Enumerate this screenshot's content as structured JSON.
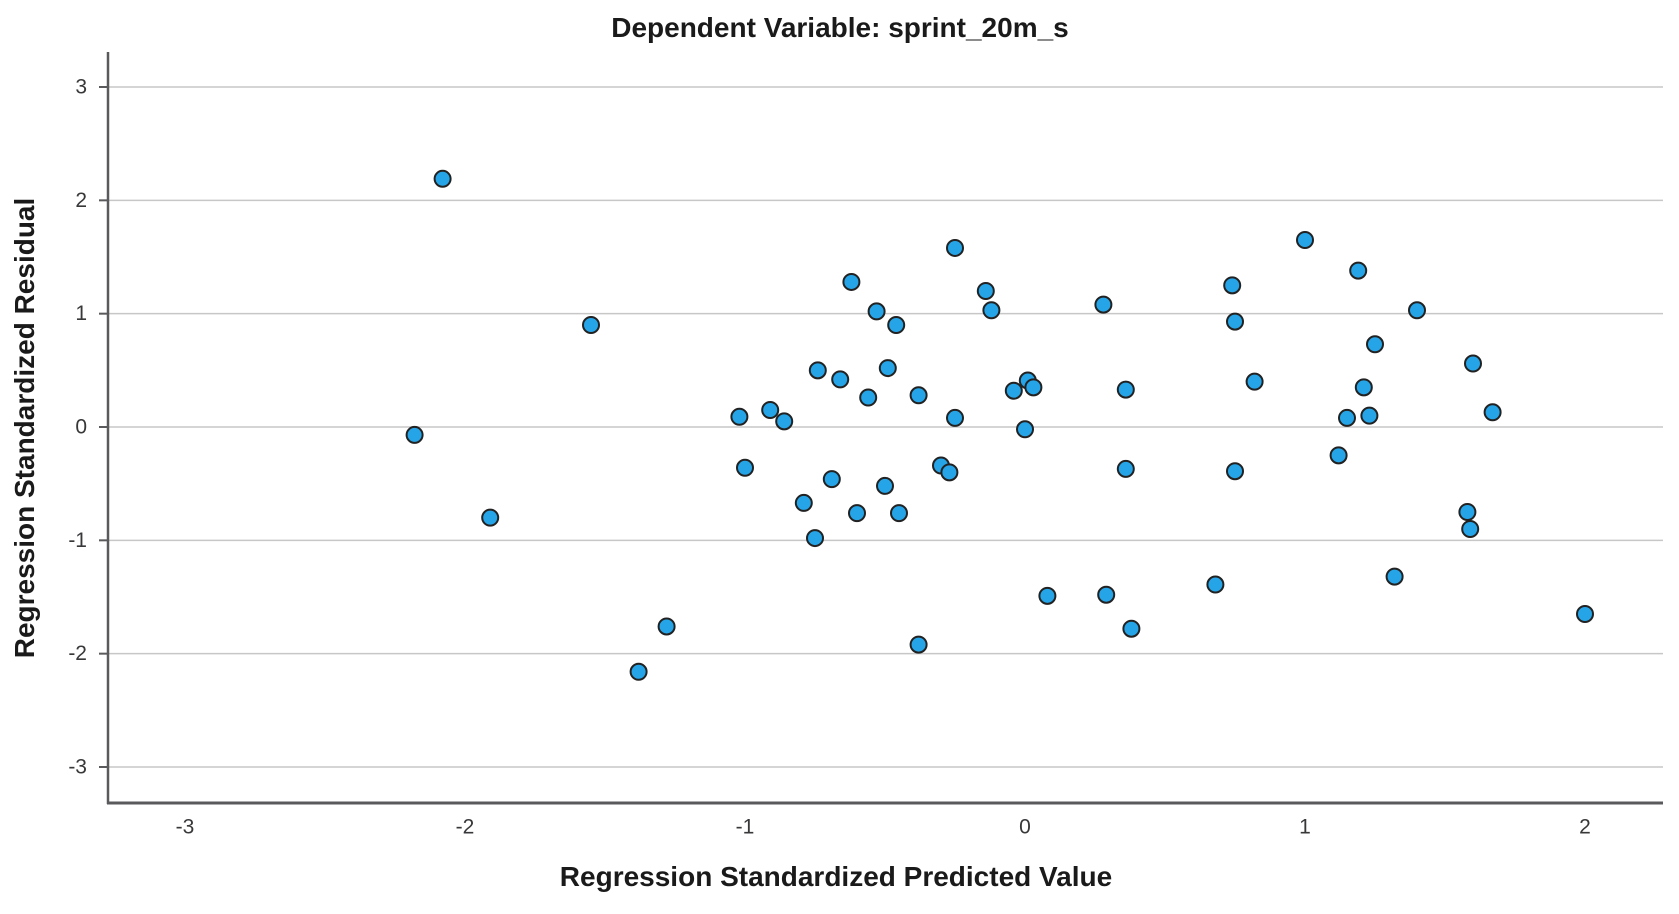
{
  "chart_data": {
    "type": "scatter",
    "title": "Dependent Variable: sprint_20m_s",
    "xlabel": "Regression Standardized Predicted Value",
    "ylabel": "Regression Standardized Residual",
    "xlim": [
      -3.3,
      2.28
    ],
    "ylim": [
      -3.3,
      3.3
    ],
    "grid": "horizontal-only",
    "legend": "none",
    "x_ticks": [
      {
        "value": -3,
        "label": "-3"
      },
      {
        "value": -2,
        "label": "-2"
      },
      {
        "value": -1,
        "label": "-1"
      },
      {
        "value": 0,
        "label": "0"
      },
      {
        "value": 1,
        "label": "1"
      },
      {
        "value": 2,
        "label": "2"
      }
    ],
    "y_ticks": [
      {
        "value": 3,
        "label": "3"
      },
      {
        "value": 2,
        "label": "2"
      },
      {
        "value": 1,
        "label": "1"
      },
      {
        "value": 0,
        "label": "0"
      },
      {
        "value": -1,
        "label": "-1"
      },
      {
        "value": -2,
        "label": "-2"
      },
      {
        "value": -3,
        "label": "-3"
      }
    ],
    "points": [
      [
        -2.18,
        -0.07
      ],
      [
        -2.08,
        2.19
      ],
      [
        -1.91,
        -0.8
      ],
      [
        -1.55,
        0.9
      ],
      [
        -1.38,
        -2.16
      ],
      [
        -1.28,
        -1.76
      ],
      [
        -1.02,
        0.09
      ],
      [
        -1.0,
        -0.36
      ],
      [
        -0.91,
        0.15
      ],
      [
        -0.86,
        0.05
      ],
      [
        -0.79,
        -0.67
      ],
      [
        -0.75,
        -0.98
      ],
      [
        -0.74,
        0.5
      ],
      [
        -0.69,
        -0.46
      ],
      [
        -0.66,
        0.42
      ],
      [
        -0.62,
        1.28
      ],
      [
        -0.6,
        -0.76
      ],
      [
        -0.56,
        0.26
      ],
      [
        -0.53,
        1.02
      ],
      [
        -0.5,
        -0.52
      ],
      [
        -0.49,
        0.52
      ],
      [
        -0.46,
        0.9
      ],
      [
        -0.45,
        -0.76
      ],
      [
        -0.38,
        0.28
      ],
      [
        -0.38,
        -1.92
      ],
      [
        -0.3,
        -0.34
      ],
      [
        -0.27,
        -0.4
      ],
      [
        -0.25,
        1.58
      ],
      [
        -0.25,
        0.08
      ],
      [
        -0.14,
        1.2
      ],
      [
        -0.12,
        1.03
      ],
      [
        -0.04,
        0.32
      ],
      [
        0.01,
        0.41
      ],
      [
        0.03,
        0.35
      ],
      [
        0.0,
        -0.02
      ],
      [
        0.08,
        -1.49
      ],
      [
        0.28,
        1.08
      ],
      [
        0.29,
        -1.48
      ],
      [
        0.36,
        0.33
      ],
      [
        0.36,
        -0.37
      ],
      [
        0.38,
        -1.78
      ],
      [
        0.68,
        -1.39
      ],
      [
        0.74,
        1.25
      ],
      [
        0.75,
        0.93
      ],
      [
        0.75,
        -0.39
      ],
      [
        0.82,
        0.4
      ],
      [
        1.0,
        1.65
      ],
      [
        1.12,
        -0.25
      ],
      [
        1.15,
        0.08
      ],
      [
        1.19,
        1.38
      ],
      [
        1.21,
        0.35
      ],
      [
        1.23,
        0.1
      ],
      [
        1.25,
        0.73
      ],
      [
        1.32,
        -1.32
      ],
      [
        1.4,
        1.03
      ],
      [
        1.58,
        -0.75
      ],
      [
        1.59,
        -0.9
      ],
      [
        1.6,
        0.56
      ],
      [
        1.67,
        0.13
      ],
      [
        2.0,
        -1.65
      ]
    ]
  },
  "style": {
    "marker_fill": "#25A5E8",
    "marker_stroke": "#222222",
    "grid_color": "#C7C7C7",
    "axis_color": "#5A5A5C",
    "title_color": "#1A1A1A",
    "tick_color": "#38383A",
    "background": "#FFFFFF"
  }
}
